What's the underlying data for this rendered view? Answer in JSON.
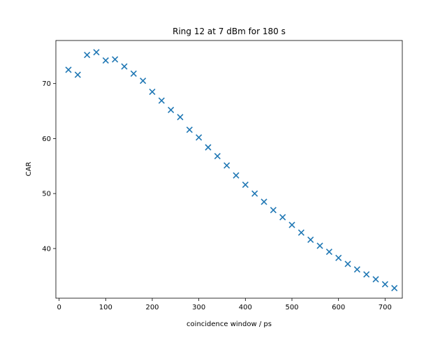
{
  "chart_data": {
    "type": "scatter",
    "title": "Ring 12 at 7 dBm for 180 s",
    "xlabel": "coincidence window / ps",
    "ylabel": "CAR",
    "xlim": [
      -7,
      737
    ],
    "ylim": [
      30.97,
      77.83
    ],
    "xticks": [
      0,
      100,
      200,
      300,
      400,
      500,
      600,
      700
    ],
    "yticks": [
      40,
      50,
      60,
      70
    ],
    "grid": false,
    "marker": "x",
    "colors": {
      "series": "#1f77b4",
      "axes": "#000000",
      "background": "#ffffff"
    },
    "series": [
      {
        "x": [
          20,
          40,
          60,
          80,
          100,
          120,
          140,
          160,
          180,
          200,
          220,
          240,
          260,
          280,
          300,
          320,
          340,
          360,
          380,
          400,
          420,
          440,
          460,
          480,
          500,
          520,
          540,
          560,
          580,
          600,
          620,
          640,
          660,
          680,
          700,
          720
        ],
        "y": [
          72.5,
          71.6,
          75.2,
          75.7,
          74.2,
          74.4,
          73.1,
          71.8,
          70.5,
          68.5,
          66.9,
          65.2,
          63.9,
          61.6,
          60.2,
          58.4,
          56.8,
          55.1,
          53.3,
          51.6,
          50.0,
          48.5,
          47.0,
          45.7,
          44.3,
          42.9,
          41.6,
          40.5,
          39.4,
          38.3,
          37.2,
          36.2,
          35.3,
          34.4,
          33.5,
          32.8
        ]
      }
    ]
  }
}
